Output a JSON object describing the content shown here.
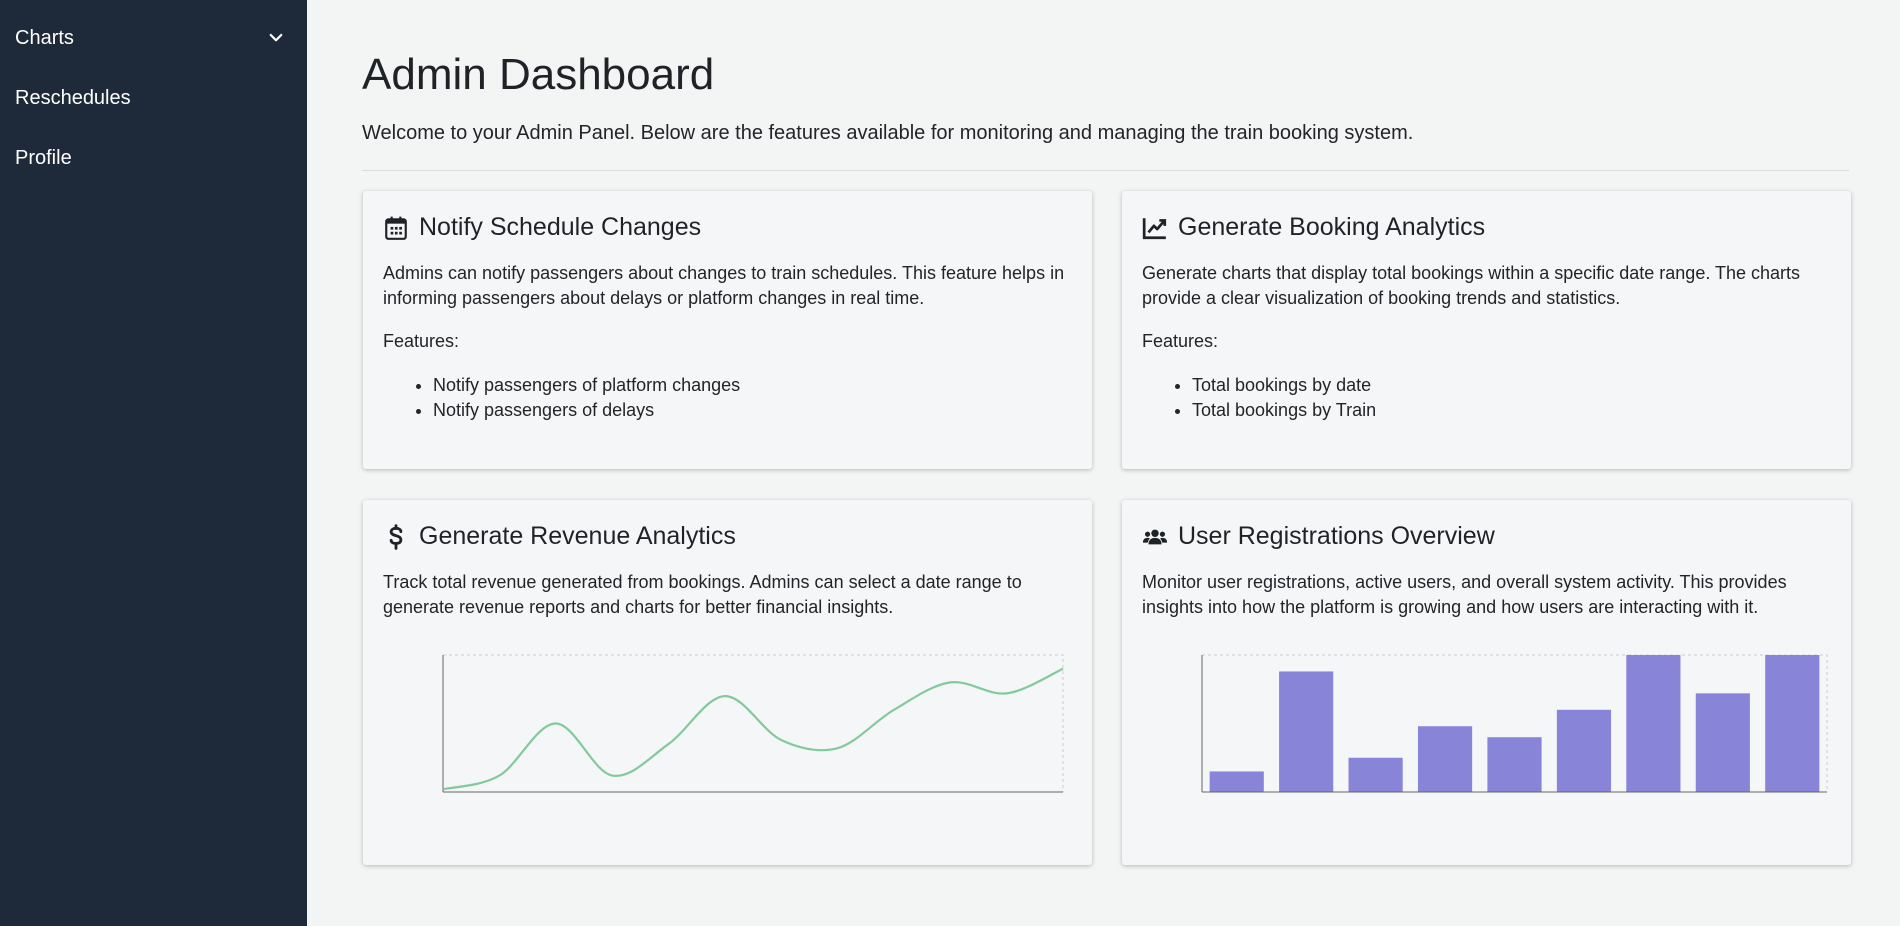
{
  "sidebar": {
    "items": [
      {
        "label": "Charts",
        "icon": "chevron-down-icon"
      },
      {
        "label": "Reschedules"
      },
      {
        "label": "Profile"
      }
    ]
  },
  "header": {
    "title": "Admin Dashboard",
    "subtitle": "Welcome to your Admin Panel. Below are the features available for monitoring and managing the train booking system."
  },
  "cards": [
    {
      "icon": "calendar-icon",
      "title": "Notify Schedule Changes",
      "description": "Admins can notify passengers about changes to train schedules. This feature helps in informing passengers about delays or platform changes in real time.",
      "features_label": "Features:",
      "features": [
        "Notify passengers of platform changes",
        "Notify passengers of delays"
      ]
    },
    {
      "icon": "line-chart-icon",
      "title": "Generate Booking Analytics",
      "description": "Generate charts that display total bookings within a specific date range. The charts provide a clear visualization of booking trends and statistics.",
      "features_label": "Features:",
      "features": [
        "Total bookings by date",
        "Total bookings by Train"
      ]
    },
    {
      "icon": "dollar-icon",
      "title": "Generate Revenue Analytics",
      "description": "Track total revenue generated from bookings. Admins can select a date range to generate revenue reports and charts for better financial insights."
    },
    {
      "icon": "users-icon",
      "title": "User Registrations Overview",
      "description": "Monitor user registrations, active users, and overall system activity. This provides insights into how the platform is growing and how users are interacting with it."
    }
  ],
  "colors": {
    "sidebar_bg": "#1e2a3a",
    "line_series": "#82ca9d",
    "bar_series": "#8884d8"
  },
  "chart_data": [
    {
      "type": "line",
      "x": [
        1,
        2,
        3,
        4,
        5,
        6,
        7,
        8,
        9,
        10,
        11,
        12
      ],
      "values": [
        2,
        12,
        50,
        12,
        35,
        70,
        38,
        32,
        60,
        80,
        72,
        90
      ],
      "ylim": [
        0,
        100
      ],
      "grid": false
    },
    {
      "type": "bar",
      "categories": [
        "1",
        "2",
        "3",
        "4",
        "5",
        "6",
        "7",
        "8",
        "9"
      ],
      "values": [
        15,
        88,
        25,
        48,
        40,
        60,
        100,
        72,
        100
      ],
      "ylim": [
        0,
        100
      ],
      "grid": false
    }
  ]
}
